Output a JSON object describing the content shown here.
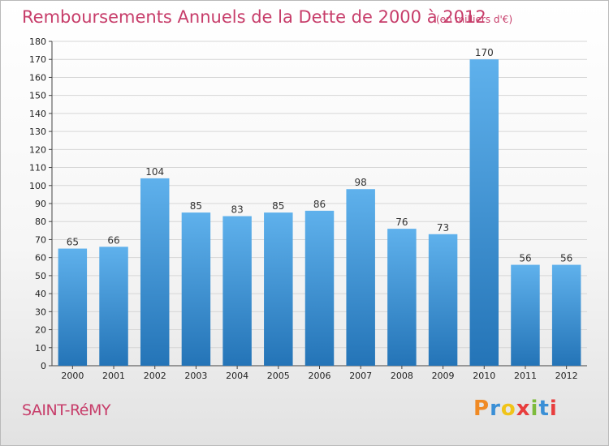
{
  "header": {
    "title": "Remboursements Annuels de la Dette de 2000 à 2012",
    "unit": "(en milliers d'€)"
  },
  "footer": {
    "city": "SAINT-RéMY",
    "logo_letters": [
      "P",
      "r",
      "o",
      "x",
      "i",
      "t",
      "i"
    ],
    "logo_colors": [
      "#f08a24",
      "#3a8fd6",
      "#f0c419",
      "#e83d3d",
      "#7dbb3c",
      "#3a8fd6",
      "#e83d3d"
    ]
  },
  "colors": {
    "bar_top": "#5fb1ec",
    "bar_bottom": "#2474b7",
    "grid": "#d6d6d6",
    "accent": "#c73d6a"
  },
  "chart_data": {
    "type": "bar",
    "categories": [
      "2000",
      "2001",
      "2002",
      "2003",
      "2004",
      "2005",
      "2006",
      "2007",
      "2008",
      "2009",
      "2010",
      "2011",
      "2012"
    ],
    "values": [
      65,
      66,
      104,
      85,
      83,
      85,
      86,
      98,
      76,
      73,
      170,
      56,
      56
    ],
    "title": "Remboursements Annuels de la Dette de 2000 à 2012",
    "subtitle": "(en milliers d'€)",
    "ylim": [
      0,
      180
    ],
    "ytick_step": 10,
    "grid": true,
    "value_labels": true
  }
}
